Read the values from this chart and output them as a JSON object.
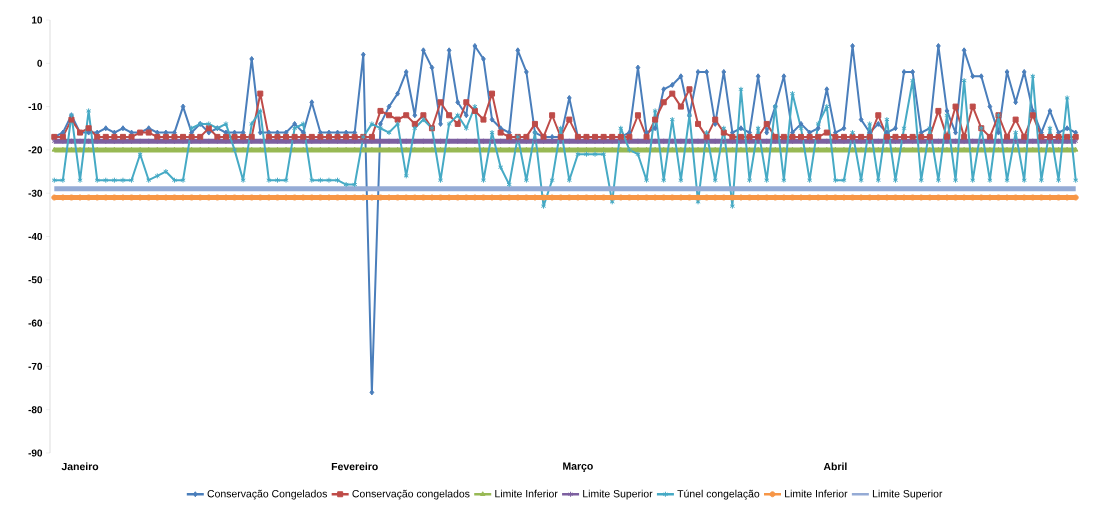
{
  "chart_data": {
    "type": "line",
    "categories": [
      null,
      null,
      null,
      "Janeiro",
      null,
      null,
      null,
      null,
      null,
      null,
      null,
      null,
      null,
      null,
      null,
      null,
      null,
      null,
      null,
      null,
      null,
      null,
      null,
      null,
      null,
      null,
      null,
      null,
      null,
      null,
      null,
      null,
      null,
      null,
      null,
      "Fevereiro",
      null,
      null,
      null,
      null,
      null,
      null,
      null,
      null,
      null,
      null,
      null,
      null,
      null,
      null,
      null,
      null,
      null,
      null,
      null,
      null,
      null,
      null,
      null,
      null,
      null,
      "Março",
      null,
      null,
      null,
      null,
      null,
      null,
      null,
      null,
      null,
      null,
      null,
      null,
      null,
      null,
      null,
      null,
      null,
      null,
      null,
      null,
      null,
      null,
      null,
      null,
      null,
      null,
      null,
      null,
      null,
      "Abril",
      null,
      null,
      null,
      null,
      null,
      null,
      null,
      null,
      null,
      null,
      null,
      null,
      null,
      null,
      null,
      null,
      null,
      null,
      null,
      null,
      null,
      null,
      null,
      null,
      null,
      null,
      null,
      null
    ],
    "ylim": [
      -90,
      10
    ],
    "yticks": [
      -90,
      -80,
      -70,
      -60,
      -50,
      -40,
      -30,
      -20,
      -10,
      0,
      10
    ],
    "legend": "bottom",
    "series": [
      {
        "name": "Conservação Congelados",
        "color": "#4a7ebb",
        "marker": "diamond",
        "values": [
          -17,
          -16,
          -12,
          -16,
          -16,
          -16,
          -15,
          -16,
          -15,
          -16,
          -16,
          -15,
          -16,
          -16,
          -16,
          -10,
          -16,
          -14,
          -16,
          -15,
          -16,
          -16,
          -16,
          1,
          -16,
          -16,
          -16,
          -16,
          -14,
          -16,
          -9,
          -16,
          -16,
          -16,
          -16,
          -16,
          2,
          -76,
          -14,
          -10,
          -7,
          -2,
          -12,
          3,
          -1,
          -14,
          3,
          -9,
          -12,
          4,
          1,
          -13,
          -15,
          -16,
          3,
          -2,
          -16,
          -17,
          -17,
          -17,
          -8,
          -17,
          -17,
          -17,
          -17,
          -17,
          -17,
          -16,
          -1,
          -16,
          -15,
          -6,
          -5,
          -3,
          -12,
          -2,
          -2,
          -14,
          -2,
          -16,
          -15,
          -16,
          -3,
          -16,
          -10,
          -3,
          -16,
          -14,
          -16,
          -15,
          -6,
          -16,
          -15,
          4,
          -13,
          -16,
          -14,
          -16,
          -15,
          -2,
          -2,
          -16,
          -15,
          4,
          -11,
          -16,
          3,
          -3,
          -3,
          -10,
          -16,
          -2,
          -9,
          -2,
          -11,
          -16,
          -11,
          -16,
          -15,
          -16
        ]
      },
      {
        "name": "Conservação congelados",
        "color": "#be4b48",
        "marker": "square",
        "values": [
          -17,
          -17,
          -13,
          -16,
          -15,
          -17,
          -17,
          -17,
          -17,
          -17,
          -16,
          -16,
          -17,
          -17,
          -17,
          -17,
          -17,
          -17,
          -15,
          -17,
          -17,
          -17,
          -17,
          -17,
          -7,
          -17,
          -17,
          -17,
          -17,
          -17,
          -17,
          -17,
          -17,
          -17,
          -17,
          -17,
          -17,
          -17,
          -11,
          -12,
          -13,
          -12,
          -14,
          -12,
          -15,
          -9,
          -12,
          -14,
          -9,
          -11,
          -13,
          -7,
          -16,
          -17,
          -17,
          -17,
          -14,
          -17,
          -12,
          -17,
          -13,
          -17,
          -17,
          -17,
          -17,
          -17,
          -17,
          -17,
          -12,
          -17,
          -13,
          -9,
          -7,
          -10,
          -6,
          -14,
          -17,
          -13,
          -16,
          -17,
          -17,
          -17,
          -17,
          -14,
          -17,
          -17,
          -17,
          -17,
          -17,
          -17,
          -16,
          -17,
          -17,
          -17,
          -17,
          -17,
          -12,
          -17,
          -17,
          -17,
          -17,
          -17,
          -17,
          -11,
          -17,
          -10,
          -17,
          -10,
          -15,
          -17,
          -12,
          -17,
          -13,
          -17,
          -12,
          -17,
          -17,
          -17,
          -17,
          -17
        ]
      },
      {
        "name": "Limite Inferior",
        "color": "#98b954",
        "marker": "triangle",
        "values": [
          -20,
          -20,
          -20,
          -20,
          -20,
          -20,
          -20,
          -20,
          -20,
          -20,
          -20,
          -20,
          -20,
          -20,
          -20,
          -20,
          -20,
          -20,
          -20,
          -20,
          -20,
          -20,
          -20,
          -20,
          -20,
          -20,
          -20,
          -20,
          -20,
          -20,
          -20,
          -20,
          -20,
          -20,
          -20,
          -20,
          -20,
          -20,
          -20,
          -20,
          -20,
          -20,
          -20,
          -20,
          -20,
          -20,
          -20,
          -20,
          -20,
          -20,
          -20,
          -20,
          -20,
          -20,
          -20,
          -20,
          -20,
          -20,
          -20,
          -20,
          -20,
          -20,
          -20,
          -20,
          -20,
          -20,
          -20,
          -20,
          -20,
          -20,
          -20,
          -20,
          -20,
          -20,
          -20,
          -20,
          -20,
          -20,
          -20,
          -20,
          -20,
          -20,
          -20,
          -20,
          -20,
          -20,
          -20,
          -20,
          -20,
          -20,
          -20,
          -20,
          -20,
          -20,
          -20,
          -20,
          -20,
          -20,
          -20,
          -20,
          -20,
          -20,
          -20,
          -20,
          -20,
          -20,
          -20,
          -20,
          -20,
          -20,
          -20,
          -20,
          -20,
          -20,
          -20,
          -20,
          -20,
          -20,
          -20,
          -20
        ]
      },
      {
        "name": "Limite Superior",
        "color": "#7d60a0",
        "marker": "cross",
        "values": [
          -18,
          -18,
          -18,
          -18,
          -18,
          -18,
          -18,
          -18,
          -18,
          -18,
          -18,
          -18,
          -18,
          -18,
          -18,
          -18,
          -18,
          -18,
          -18,
          -18,
          -18,
          -18,
          -18,
          -18,
          -18,
          -18,
          -18,
          -18,
          -18,
          -18,
          -18,
          -18,
          -18,
          -18,
          -18,
          -18,
          -18,
          -18,
          -18,
          -18,
          -18,
          -18,
          -18,
          -18,
          -18,
          -18,
          -18,
          -18,
          -18,
          -18,
          -18,
          -18,
          -18,
          -18,
          -18,
          -18,
          -18,
          -18,
          -18,
          -18,
          -18,
          -18,
          -18,
          -18,
          -18,
          -18,
          -18,
          -18,
          -18,
          -18,
          -18,
          -18,
          -18,
          -18,
          -18,
          -18,
          -18,
          -18,
          -18,
          -18,
          -18,
          -18,
          -18,
          -18,
          -18,
          -18,
          -18,
          -18,
          -18,
          -18,
          -18,
          -18,
          -18,
          -18,
          -18,
          -18,
          -18,
          -18,
          -18,
          -18,
          -18,
          -18,
          -18,
          -18,
          -18,
          -18,
          -18,
          -18,
          -18,
          -18,
          -18,
          -18,
          -18,
          -18,
          -18,
          -18,
          -18,
          -18,
          -18,
          -18
        ]
      },
      {
        "name": "Túnel congelação",
        "color": "#46aac5",
        "marker": "cross",
        "values": [
          -27,
          -27,
          -12,
          -27,
          -11,
          -27,
          -27,
          -27,
          -27,
          -27,
          -21,
          -27,
          -26,
          -25,
          -27,
          -27,
          -15,
          -14,
          -14,
          -15,
          -14,
          -20,
          -27,
          -14,
          -11,
          -27,
          -27,
          -27,
          -15,
          -14,
          -27,
          -27,
          -27,
          -27,
          -28,
          -28,
          -17,
          -14,
          -15,
          -16,
          -14,
          -26,
          -15,
          -13,
          -15,
          -27,
          -14,
          -12,
          -15,
          -10,
          -27,
          -16,
          -24,
          -28,
          -17,
          -27,
          -16,
          -33,
          -27,
          -15,
          -27,
          -21,
          -21,
          -21,
          -21,
          -32,
          -15,
          -20,
          -21,
          -27,
          -11,
          -27,
          -13,
          -27,
          -12,
          -32,
          -16,
          -27,
          -15,
          -33,
          -6,
          -27,
          -15,
          -27,
          -10,
          -27,
          -7,
          -15,
          -27,
          -14,
          -10,
          -27,
          -27,
          -16,
          -27,
          -14,
          -27,
          -13,
          -27,
          -15,
          -4,
          -27,
          -15,
          -27,
          -12,
          -27,
          -4,
          -27,
          -15,
          -27,
          -12,
          -27,
          -16,
          -27,
          -3,
          -27,
          -15,
          -27,
          -8,
          -27
        ]
      },
      {
        "name": "Limite Inferior",
        "color": "#f79646",
        "marker": "circle",
        "values": [
          -31,
          -31,
          -31,
          -31,
          -31,
          -31,
          -31,
          -31,
          -31,
          -31,
          -31,
          -31,
          -31,
          -31,
          -31,
          -31,
          -31,
          -31,
          -31,
          -31,
          -31,
          -31,
          -31,
          -31,
          -31,
          -31,
          -31,
          -31,
          -31,
          -31,
          -31,
          -31,
          -31,
          -31,
          -31,
          -31,
          -31,
          -31,
          -31,
          -31,
          -31,
          -31,
          -31,
          -31,
          -31,
          -31,
          -31,
          -31,
          -31,
          -31,
          -31,
          -31,
          -31,
          -31,
          -31,
          -31,
          -31,
          -31,
          -31,
          -31,
          -31,
          -31,
          -31,
          -31,
          -31,
          -31,
          -31,
          -31,
          -31,
          -31,
          -31,
          -31,
          -31,
          -31,
          -31,
          -31,
          -31,
          -31,
          -31,
          -31,
          -31,
          -31,
          -31,
          -31,
          -31,
          -31,
          -31,
          -31,
          -31,
          -31,
          -31,
          -31,
          -31,
          -31,
          -31,
          -31,
          -31,
          -31,
          -31,
          -31,
          -31,
          -31,
          -31,
          -31,
          -31,
          -31,
          -31,
          -31,
          -31,
          -31,
          -31,
          -31,
          -31,
          -31,
          -31,
          -31,
          -31,
          -31,
          -31,
          -31
        ]
      },
      {
        "name": "Limite Superior",
        "color": "#95abd5",
        "marker": "none",
        "values": [
          -29,
          -29,
          -29,
          -29,
          -29,
          -29,
          -29,
          -29,
          -29,
          -29,
          -29,
          -29,
          -29,
          -29,
          -29,
          -29,
          -29,
          -29,
          -29,
          -29,
          -29,
          -29,
          -29,
          -29,
          -29,
          -29,
          -29,
          -29,
          -29,
          -29,
          -29,
          -29,
          -29,
          -29,
          -29,
          -29,
          -29,
          -29,
          -29,
          -29,
          -29,
          -29,
          -29,
          -29,
          -29,
          -29,
          -29,
          -29,
          -29,
          -29,
          -29,
          -29,
          -29,
          -29,
          -29,
          -29,
          -29,
          -29,
          -29,
          -29,
          -29,
          -29,
          -29,
          -29,
          -29,
          -29,
          -29,
          -29,
          -29,
          -29,
          -29,
          -29,
          -29,
          -29,
          -29,
          -29,
          -29,
          -29,
          -29,
          -29,
          -29,
          -29,
          -29,
          -29,
          -29,
          -29,
          -29,
          -29,
          -29,
          -29,
          -29,
          -29,
          -29,
          -29,
          -29,
          -29,
          -29,
          -29,
          -29,
          -29,
          -29,
          -29,
          -29,
          -29,
          -29,
          -29,
          -29,
          -29,
          -29,
          -29,
          -29,
          -29,
          -29,
          -29,
          -29,
          -29,
          -29,
          -29,
          -29,
          -29
        ]
      }
    ]
  }
}
